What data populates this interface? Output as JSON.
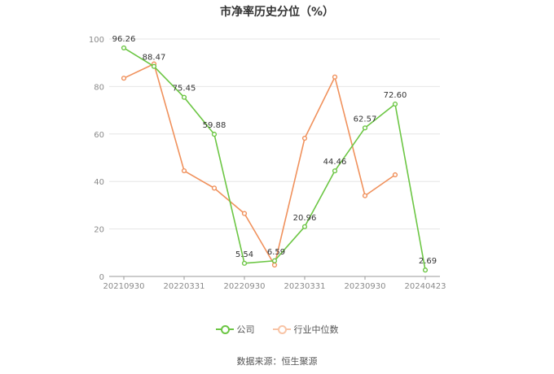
{
  "chart_data": {
    "type": "line",
    "title": "市净率历史分位（%）",
    "x": [
      "20210930",
      "20211231",
      "20220331",
      "20220630",
      "20220930",
      "20221230",
      "20230331",
      "20230630",
      "20230930",
      "20231229",
      "20240423"
    ],
    "x_tick_labels": [
      "20210930",
      "20220331",
      "20220930",
      "20230331",
      "20230930",
      "20240423"
    ],
    "ylim": [
      0,
      100
    ],
    "y_ticks": [
      0,
      20,
      40,
      60,
      80,
      100
    ],
    "grid": true,
    "legend_position": "bottom",
    "series": [
      {
        "name": "公司",
        "color": "#6cc644",
        "values": [
          96.26,
          88.47,
          75.45,
          59.88,
          5.54,
          6.59,
          20.96,
          44.46,
          62.57,
          72.6,
          2.69
        ],
        "labels": [
          "96.26",
          "88.47",
          "75.45",
          "59.88",
          "5.54",
          "6.59",
          "20.96",
          "44.46",
          "62.57",
          "72.60",
          "2.69"
        ]
      },
      {
        "name": "行业中位数",
        "color": "#f0915c",
        "values": [
          83.5,
          89.5,
          44.5,
          37.2,
          26.5,
          4.8,
          58.2,
          84.0,
          34.0,
          42.8,
          null
        ]
      }
    ]
  },
  "source_text": "数据来源：恒生聚源"
}
